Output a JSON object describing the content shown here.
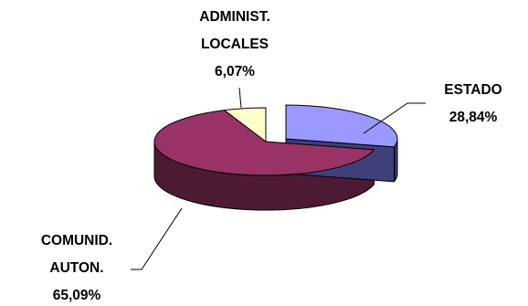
{
  "chart_data": {
    "type": "pie",
    "title": "",
    "categories": [
      "ESTADO",
      "COMUNID. AUTON.",
      "ADMINIST. LOCALES"
    ],
    "values": [
      28.84,
      65.09,
      6.07
    ],
    "series": [
      {
        "values": [
          28.84,
          65.09,
          6.07
        ],
        "colors": [
          "#9999ff",
          "#993366",
          "#ffffcc"
        ],
        "side_colors": [
          "#3f3f7a",
          "#4d1a33",
          "#7a7a5c"
        ]
      }
    ],
    "labels": [
      {
        "name_lines": [
          "ESTADO"
        ],
        "value": "28,84%"
      },
      {
        "name_lines": [
          "COMUNID.",
          "AUTON."
        ],
        "value": "65,09%"
      },
      {
        "name_lines": [
          "ADMINIST.",
          "LOCALES"
        ],
        "value": "6,07%"
      }
    ],
    "style": "3d-exploded",
    "legend": "none"
  }
}
